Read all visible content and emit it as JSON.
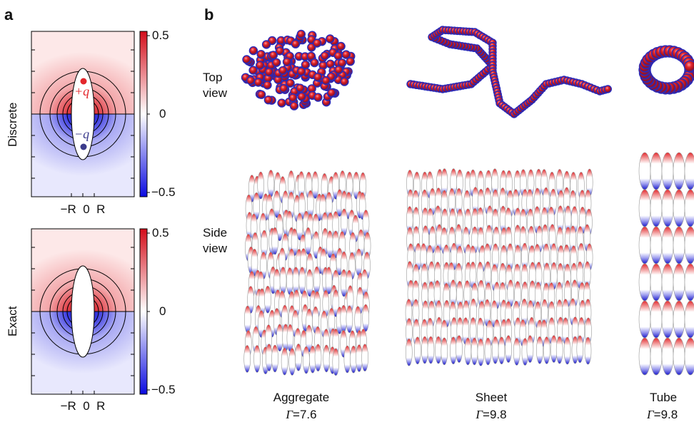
{
  "panels": {
    "a": {
      "letter": "a",
      "rows": [
        {
          "label": "Discrete",
          "colorbar_ticks": [
            "0.5",
            "0",
            "−0.5"
          ],
          "charges": [
            "+q",
            "−q"
          ],
          "x_ticks": "−R  0  R"
        },
        {
          "label": "Exact",
          "colorbar_ticks": [
            "0.5",
            "0",
            "−0.5"
          ],
          "x_ticks": "−R  0  R"
        }
      ],
      "colors": {
        "positive": "#e3262b",
        "negative": "#1f1fd6",
        "neutral": "#ffffff"
      }
    },
    "b": {
      "letter": "b",
      "row_labels": {
        "top": [
          "Top",
          "view"
        ],
        "side": [
          "Side",
          "view"
        ]
      },
      "columns": [
        {
          "name": "Aggregate",
          "gamma_symbol": "Γ",
          "gamma_value": "=7.6"
        },
        {
          "name": "Sheet",
          "gamma_symbol": "Γ",
          "gamma_value": "=9.8"
        },
        {
          "name": "Tube",
          "gamma_symbol": "Γ",
          "gamma_value": "=9.8"
        }
      ],
      "colors": {
        "particle_red": "#e3262b",
        "particle_blue": "#1a1acc"
      }
    }
  }
}
